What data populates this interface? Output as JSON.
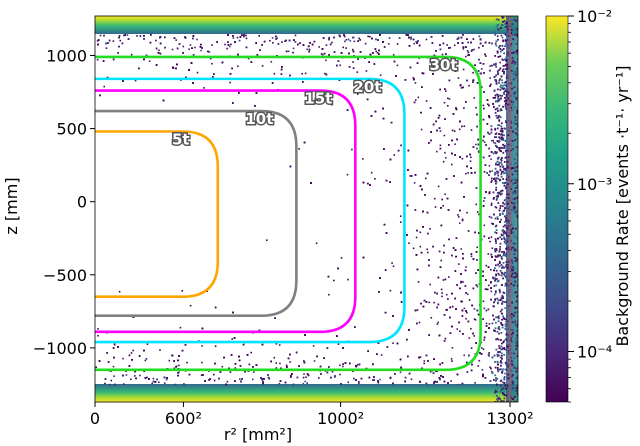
{
  "chart_data": {
    "type": "heatmap",
    "title": "",
    "xlabel": "r² [mm²]",
    "ylabel": "z [mm]",
    "xlim": [
      0,
      1722500
    ],
    "ylim": [
      -1370,
      1270
    ],
    "x_ticks": [
      {
        "value": 0,
        "label": "0"
      },
      {
        "value": 360000,
        "label": "600²"
      },
      {
        "value": 1000000,
        "label": "1000²"
      },
      {
        "value": 1690000,
        "label": "1300²"
      }
    ],
    "y_ticks": [
      {
        "value": 1000,
        "label": "1000"
      },
      {
        "value": 500,
        "label": "500"
      },
      {
        "value": 0,
        "label": "0"
      },
      {
        "value": -500,
        "label": "−500"
      },
      {
        "value": -1000,
        "label": "−1000"
      }
    ],
    "colorbar": {
      "label": "Background Rate [events ·t⁻¹· yr⁻¹]",
      "scale": "log",
      "min": 5e-05,
      "max": 0.01,
      "colormap": "viridis",
      "ticks": [
        {
          "value": 0.01,
          "label": "10⁻²"
        },
        {
          "value": 0.001,
          "label": "10⁻³"
        },
        {
          "value": 0.0001,
          "label": "10⁻⁴"
        }
      ]
    },
    "detector_boundary": {
      "r2": 1690000,
      "color": "#c0504d"
    },
    "contours": [
      {
        "label": "5t",
        "color": "#ffa500",
        "r2_max": 500000,
        "z_top": 480,
        "z_bottom": -650
      },
      {
        "label": "10t",
        "color": "#808080",
        "r2_max": 820000,
        "z_top": 620,
        "z_bottom": -780
      },
      {
        "label": "15t",
        "color": "#ff00ff",
        "r2_max": 1060000,
        "z_top": 760,
        "z_bottom": -890
      },
      {
        "label": "20t",
        "color": "#00e5ff",
        "r2_max": 1260000,
        "z_top": 840,
        "z_bottom": -960
      },
      {
        "label": "30t",
        "color": "#22dd22",
        "r2_max": 1570000,
        "z_top": 990,
        "z_bottom": -1150
      }
    ],
    "grid": false,
    "legend": "none"
  }
}
